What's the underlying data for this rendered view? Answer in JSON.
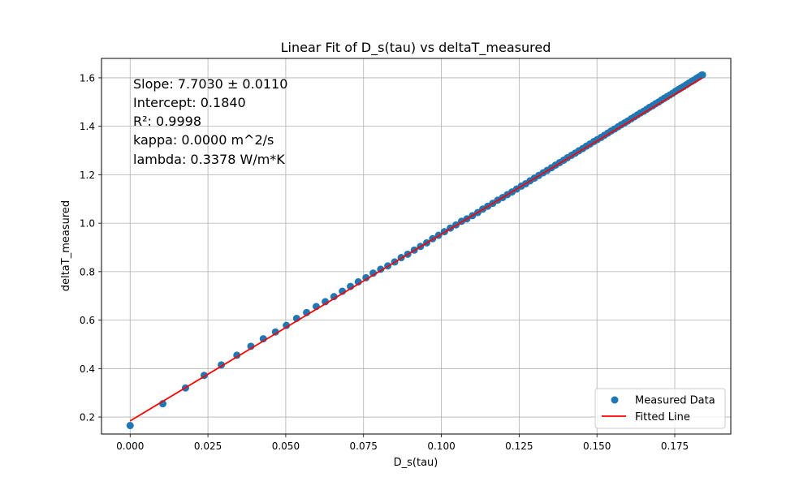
{
  "chart_data": {
    "type": "scatter",
    "title": "Linear Fit of D_s(tau) vs deltaT_measured",
    "xlabel": "D_s(tau)",
    "ylabel": "deltaT_measured",
    "xlim": [
      -0.0092,
      0.193
    ],
    "ylim": [
      0.1299,
      1.6801
    ],
    "x_ticks": [
      {
        "value": 0.0,
        "label": "0.000"
      },
      {
        "value": 0.025,
        "label": "0.025"
      },
      {
        "value": 0.05,
        "label": "0.050"
      },
      {
        "value": 0.075,
        "label": "0.075"
      },
      {
        "value": 0.1,
        "label": "0.100"
      },
      {
        "value": 0.125,
        "label": "0.125"
      },
      {
        "value": 0.15,
        "label": "0.150"
      },
      {
        "value": 0.175,
        "label": "0.175"
      }
    ],
    "y_ticks": [
      {
        "value": 0.2,
        "label": "0.2"
      },
      {
        "value": 0.4,
        "label": "0.4"
      },
      {
        "value": 0.6,
        "label": "0.6"
      },
      {
        "value": 0.8,
        "label": "0.8"
      },
      {
        "value": 1.0,
        "label": "1.0"
      },
      {
        "value": 1.2,
        "label": "1.2"
      },
      {
        "value": 1.4,
        "label": "1.4"
      },
      {
        "value": 1.6,
        "label": "1.6"
      }
    ],
    "grid": true,
    "legend_position": "bottom-right",
    "series": [
      {
        "name": "Measured Data",
        "kind": "scatter",
        "color": "#1f77b4",
        "points": [
          [
            0.0,
            0.165
          ],
          [
            0.0105,
            0.255
          ],
          [
            0.0178,
            0.32
          ],
          [
            0.0238,
            0.372
          ],
          [
            0.0293,
            0.415
          ],
          [
            0.0343,
            0.455
          ],
          [
            0.0388,
            0.492
          ],
          [
            0.0428,
            0.523
          ],
          [
            0.0467,
            0.551
          ],
          [
            0.0502,
            0.578
          ],
          [
            0.0535,
            0.607
          ],
          [
            0.0567,
            0.631
          ],
          [
            0.0598,
            0.656
          ],
          [
            0.0627,
            0.676
          ],
          [
            0.0655,
            0.697
          ],
          [
            0.0682,
            0.719
          ],
          [
            0.0708,
            0.739
          ],
          [
            0.0733,
            0.758
          ],
          [
            0.0758,
            0.775
          ],
          [
            0.0781,
            0.794
          ],
          [
            0.0805,
            0.81
          ],
          [
            0.0828,
            0.824
          ],
          [
            0.085,
            0.84
          ],
          [
            0.0871,
            0.858
          ],
          [
            0.0892,
            0.872
          ],
          [
            0.0913,
            0.889
          ],
          [
            0.0933,
            0.904
          ],
          [
            0.0953,
            0.919
          ],
          [
            0.0972,
            0.936
          ],
          [
            0.0991,
            0.95
          ],
          [
            0.101,
            0.965
          ],
          [
            0.1029,
            0.98
          ],
          [
            0.1047,
            0.993
          ],
          [
            0.1065,
            1.008
          ],
          [
            0.1082,
            1.018
          ],
          [
            0.11,
            1.031
          ],
          [
            0.1117,
            1.044
          ],
          [
            0.1133,
            1.058
          ],
          [
            0.1149,
            1.07
          ],
          [
            0.1165,
            1.082
          ],
          [
            0.1181,
            1.095
          ],
          [
            0.1197,
            1.106
          ],
          [
            0.1212,
            1.118
          ],
          [
            0.1227,
            1.129
          ],
          [
            0.1242,
            1.141
          ],
          [
            0.1257,
            1.153
          ],
          [
            0.1271,
            1.163
          ],
          [
            0.1285,
            1.175
          ],
          [
            0.1299,
            1.186
          ],
          [
            0.1313,
            1.197
          ],
          [
            0.1327,
            1.208
          ],
          [
            0.134,
            1.218
          ],
          [
            0.1354,
            1.229
          ],
          [
            0.1367,
            1.24
          ],
          [
            0.138,
            1.25
          ],
          [
            0.1393,
            1.26
          ],
          [
            0.1405,
            1.27
          ],
          [
            0.1418,
            1.28
          ],
          [
            0.143,
            1.289
          ],
          [
            0.1442,
            1.299
          ],
          [
            0.1454,
            1.308
          ],
          [
            0.1466,
            1.318
          ],
          [
            0.1478,
            1.327
          ],
          [
            0.149,
            1.337
          ],
          [
            0.1501,
            1.345
          ],
          [
            0.1513,
            1.354
          ],
          [
            0.1524,
            1.363
          ],
          [
            0.1535,
            1.372
          ],
          [
            0.1546,
            1.381
          ],
          [
            0.1557,
            1.389
          ],
          [
            0.1568,
            1.398
          ],
          [
            0.1578,
            1.406
          ],
          [
            0.1589,
            1.414
          ],
          [
            0.1599,
            1.422
          ],
          [
            0.161,
            1.431
          ],
          [
            0.162,
            1.439
          ],
          [
            0.163,
            1.447
          ],
          [
            0.164,
            1.455
          ],
          [
            0.165,
            1.462
          ],
          [
            0.166,
            1.47
          ],
          [
            0.1669,
            1.478
          ],
          [
            0.1679,
            1.485
          ],
          [
            0.1688,
            1.493
          ],
          [
            0.1698,
            1.5
          ],
          [
            0.1707,
            1.508
          ],
          [
            0.1716,
            1.515
          ],
          [
            0.1725,
            1.522
          ],
          [
            0.1734,
            1.529
          ],
          [
            0.1743,
            1.536
          ],
          [
            0.1752,
            1.544
          ],
          [
            0.1761,
            1.551
          ],
          [
            0.177,
            1.558
          ],
          [
            0.1778,
            1.564
          ],
          [
            0.1787,
            1.571
          ],
          [
            0.1795,
            1.578
          ],
          [
            0.1804,
            1.585
          ],
          [
            0.1812,
            1.591
          ],
          [
            0.182,
            1.598
          ],
          [
            0.1828,
            1.604
          ],
          [
            0.1836,
            1.611
          ],
          [
            0.1839,
            1.612
          ]
        ]
      },
      {
        "name": "Fitted Line",
        "kind": "line",
        "color": "#ff0000",
        "slope": 7.703,
        "intercept": 0.184,
        "x_range": [
          0.0,
          0.1839
        ]
      }
    ],
    "annotations": [
      "Slope: 7.7030 ± 0.0110",
      "Intercept: 0.1840",
      "R²: 0.9998",
      "kappa: 0.0000 m^2/s",
      "lambda: 0.3378 W/m*K"
    ]
  }
}
